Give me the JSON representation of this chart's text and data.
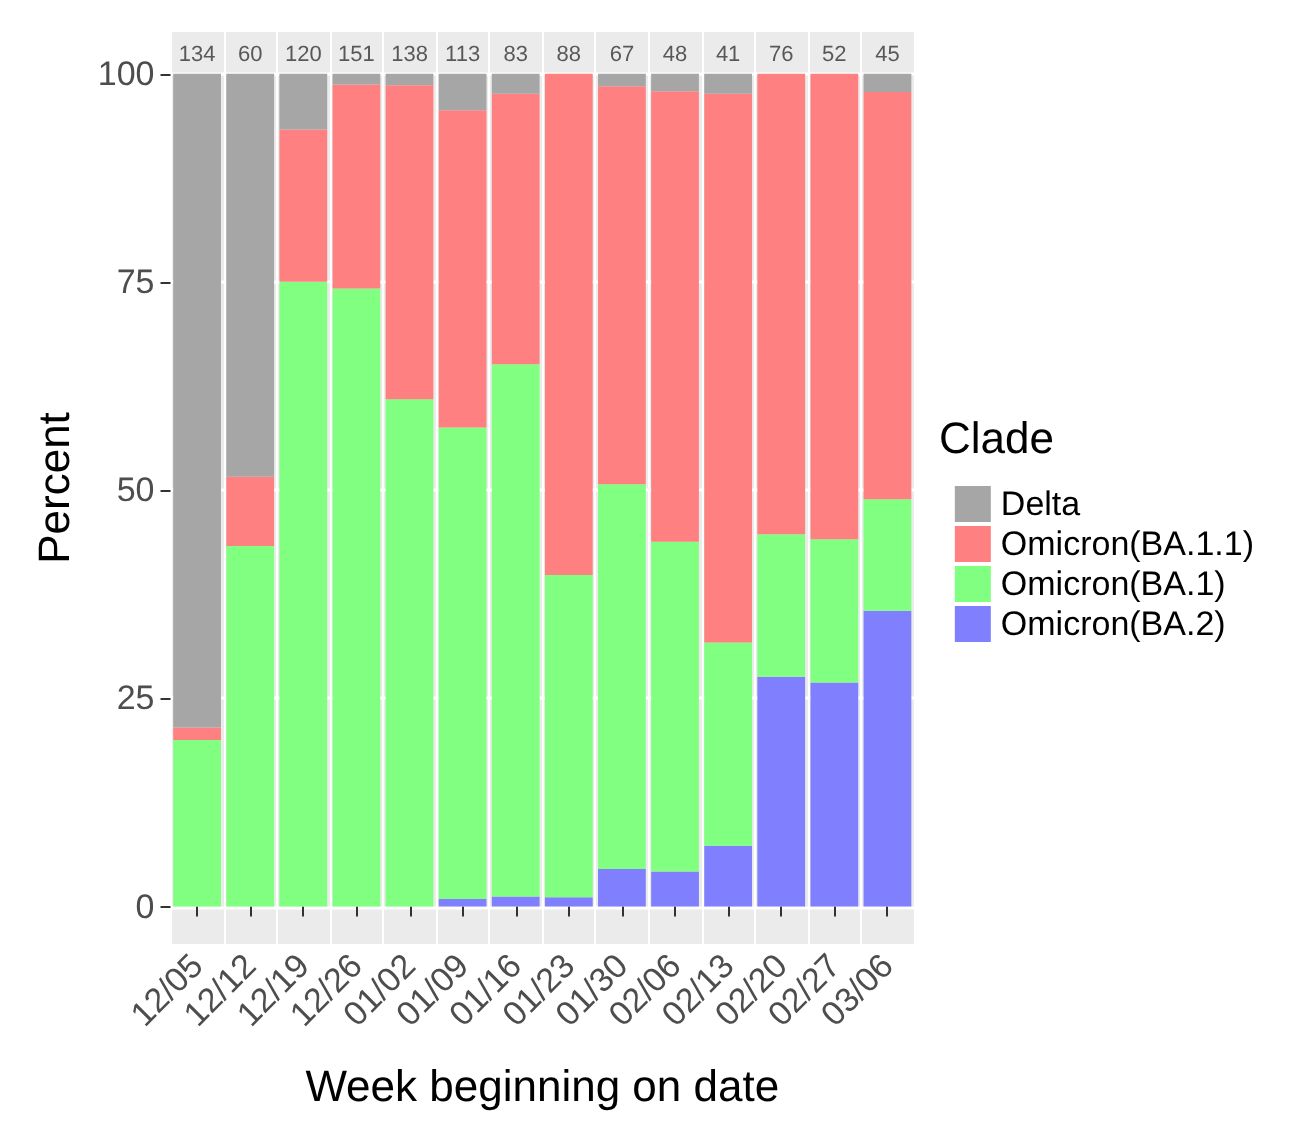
{
  "chart_data": {
    "type": "bar",
    "stacked": true,
    "xlabel": "Week beginning on date",
    "ylabel": "Percent",
    "legend_title": "Clade",
    "legend": "right",
    "grid": true,
    "categories": [
      "12/05",
      "12/12",
      "12/19",
      "12/26",
      "01/02",
      "01/09",
      "01/16",
      "01/23",
      "01/30",
      "02/06",
      "02/13",
      "02/20",
      "02/27",
      "03/06"
    ],
    "ylim": [
      -4.5,
      105
    ],
    "yticks": [
      0,
      25,
      50,
      75,
      100
    ],
    "series": [
      {
        "name": "Omicron(BA.2)",
        "color": "#8080ff",
        "values": [
          0,
          0,
          0,
          0,
          0,
          0.9,
          1.2,
          1.1,
          4.5,
          4.2,
          7.3,
          27.6,
          26.9,
          35.5
        ]
      },
      {
        "name": "Omicron(BA.1)",
        "color": "#80ff80",
        "values": [
          20,
          43.3,
          75,
          74.2,
          60.9,
          56.6,
          63.9,
          38.7,
          46.2,
          39.6,
          24.4,
          17.1,
          17.2,
          13.4
        ]
      },
      {
        "name": "Omicron(BA.1.1)",
        "color": "#ff8080",
        "values": [
          1.5,
          8.3,
          18.3,
          24.5,
          37.7,
          38.1,
          32.5,
          60.2,
          47.8,
          54.1,
          65.9,
          55.3,
          55.9,
          48.9
        ]
      },
      {
        "name": "Delta",
        "color": "#a6a6a6",
        "values": [
          78.5,
          48.4,
          6.7,
          1.3,
          1.4,
          4.4,
          2.4,
          0,
          1.5,
          2.1,
          2.4,
          0,
          0,
          2.2
        ]
      }
    ],
    "annotations": [
      "134",
      "60",
      "120",
      "151",
      "138",
      "113",
      "83",
      "88",
      "67",
      "48",
      "41",
      "76",
      "52",
      "45"
    ]
  }
}
